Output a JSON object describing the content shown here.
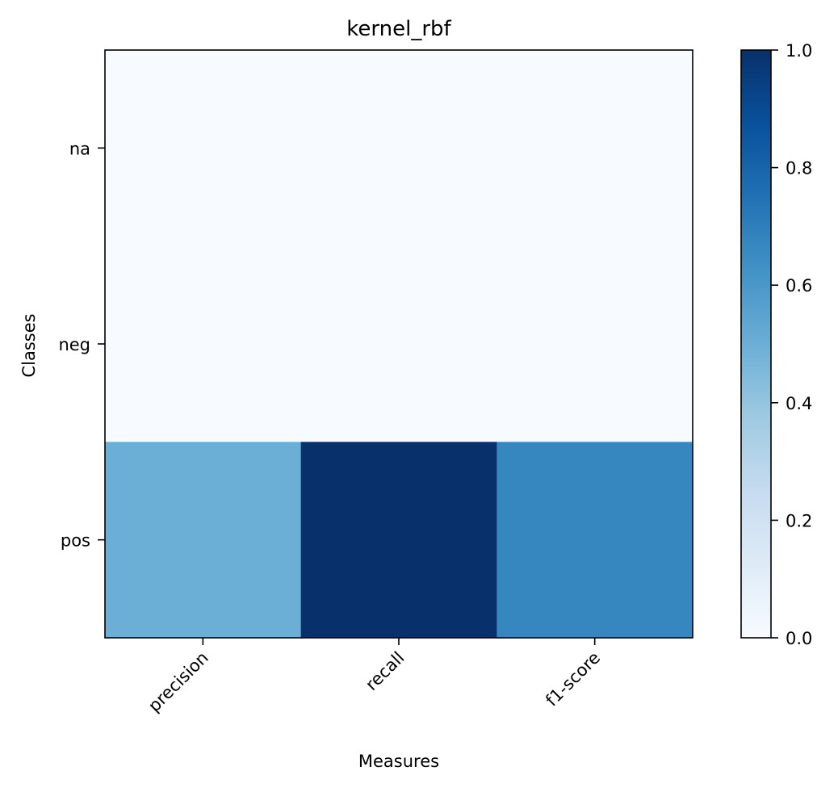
{
  "chart_data": {
    "type": "heatmap",
    "title": "kernel_rbf",
    "xlabel": "Measures",
    "ylabel": "Classes",
    "x_categories": [
      "precision",
      "recall",
      "f1-score"
    ],
    "y_categories": [
      "na",
      "neg",
      "pos"
    ],
    "values": [
      [
        0.0,
        0.0,
        0.0
      ],
      [
        0.0,
        0.0,
        0.0
      ],
      [
        0.5,
        1.0,
        0.67
      ]
    ],
    "colormap": "Blues",
    "colorbar": {
      "range": [
        0.0,
        1.0
      ],
      "ticks": [
        "0.0",
        "0.2",
        "0.4",
        "0.6",
        "0.8",
        "1.0"
      ]
    },
    "x_tick_rotation_deg": 45,
    "grid": false
  }
}
